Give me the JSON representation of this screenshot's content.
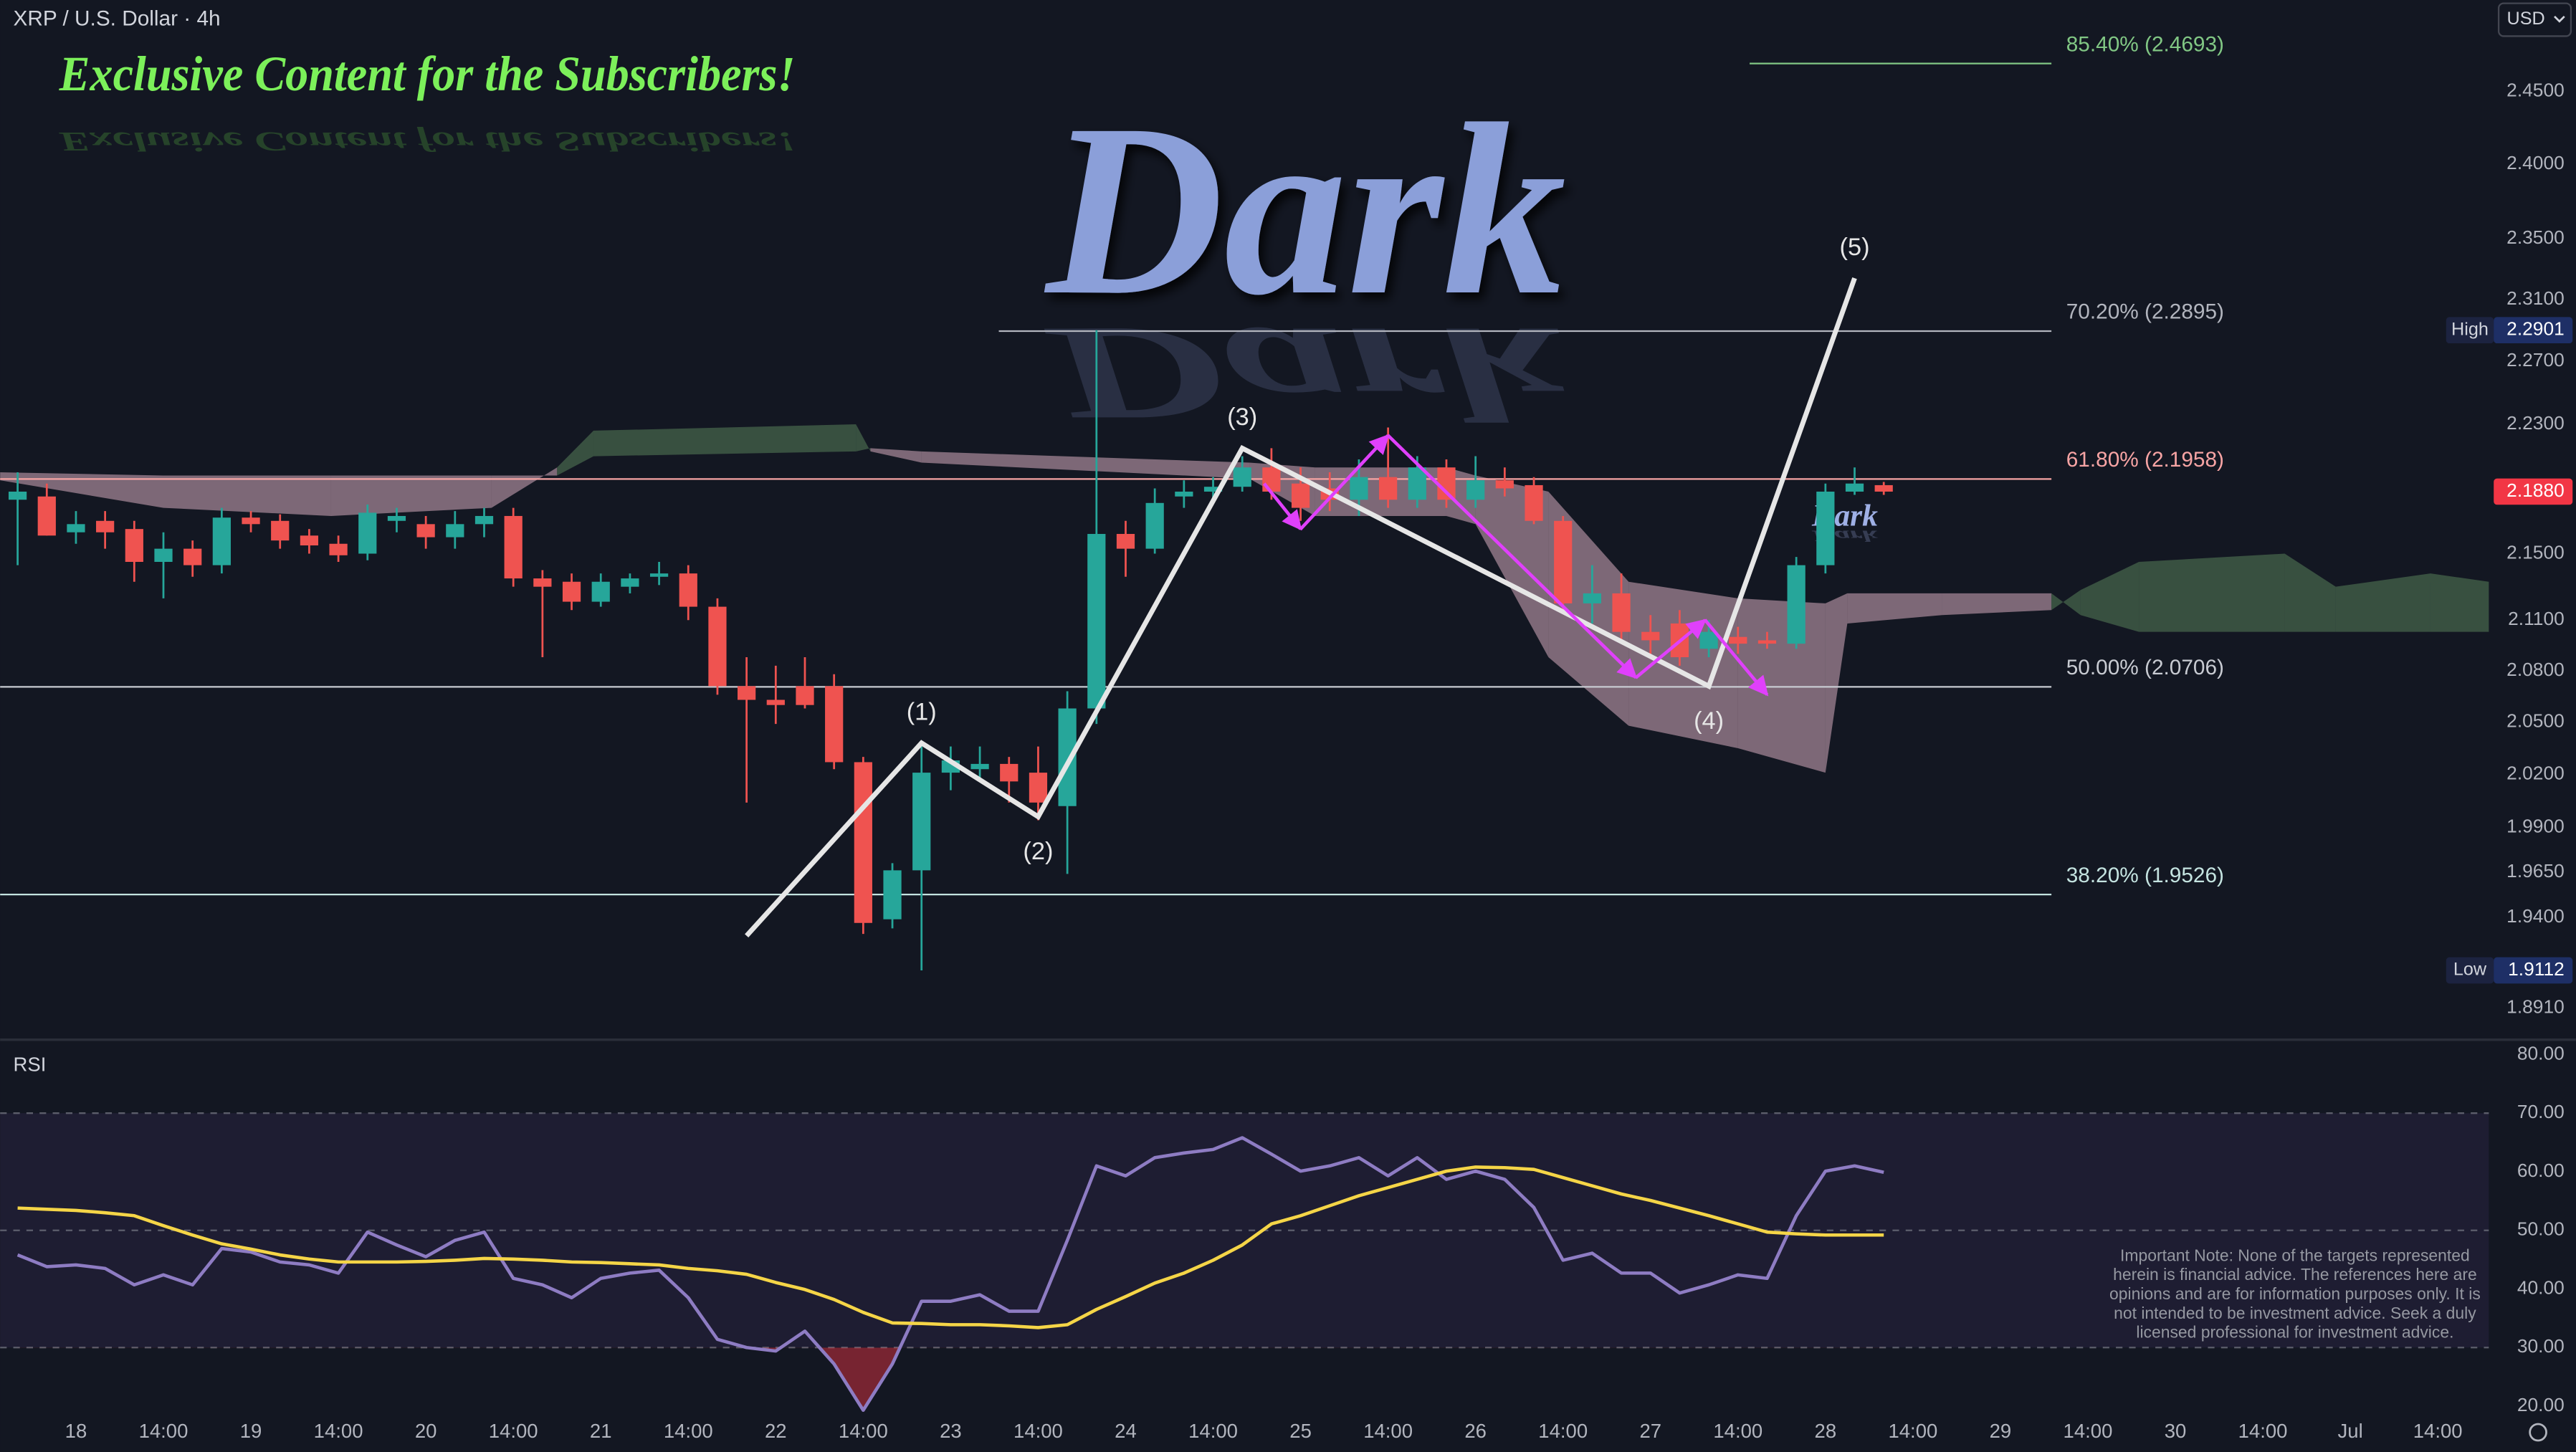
{
  "header": {
    "symbol": "XRP / U.S. Dollar · 4h",
    "currency": "USD"
  },
  "watermarks": {
    "banner": "Exclusive Content for the Subscribers!",
    "brand": "Dark",
    "brand_small": "Dark"
  },
  "note": {
    "lines": [
      "Important Note: None of the targets represented",
      "herein is financial advice. The references here are",
      "opinions and are for information purposes only. It is",
      "not intended to be investment advice. Seek a duly",
      "licensed professional for investment advice."
    ]
  },
  "chart_data": [
    {
      "type": "candlestick",
      "log": true,
      "xlim": [
        -8.4,
        333
      ],
      "xticks": [
        {
          "value": 2,
          "label": "18"
        },
        {
          "value": 14,
          "label": "14:00"
        },
        {
          "value": 26,
          "label": "19"
        },
        {
          "value": 38,
          "label": "14:00"
        },
        {
          "value": 50,
          "label": "20"
        },
        {
          "value": 62,
          "label": "14:00"
        },
        {
          "value": 74,
          "label": "21"
        },
        {
          "value": 86,
          "label": "14:00"
        },
        {
          "value": 98,
          "label": "22"
        },
        {
          "value": 110,
          "label": "14:00"
        },
        {
          "value": 122,
          "label": "23"
        },
        {
          "value": 134,
          "label": "14:00"
        },
        {
          "value": 146,
          "label": "24"
        },
        {
          "value": 158,
          "label": "14:00"
        },
        {
          "value": 170,
          "label": "25"
        },
        {
          "value": 182,
          "label": "14:00"
        },
        {
          "value": 194,
          "label": "26"
        },
        {
          "value": 206,
          "label": "14:00"
        },
        {
          "value": 218,
          "label": "27"
        },
        {
          "value": 230,
          "label": "14:00"
        },
        {
          "value": 242,
          "label": "28"
        },
        {
          "value": 254,
          "label": "14:00"
        },
        {
          "value": 266,
          "label": "29"
        },
        {
          "value": 278,
          "label": "14:00"
        },
        {
          "value": 290,
          "label": "30"
        },
        {
          "value": 302,
          "label": "14:00"
        },
        {
          "value": 314,
          "label": "Jul"
        },
        {
          "value": 326,
          "label": "14:00"
        }
      ],
      "ylim": [
        1.875,
        2.514
      ],
      "yticks": [
        {
          "value": 2.45,
          "label": "2.4500"
        },
        {
          "value": 2.4,
          "label": "2.4000"
        },
        {
          "value": 2.35,
          "label": "2.3500"
        },
        {
          "value": 2.31,
          "label": "2.3100"
        },
        {
          "value": 2.27,
          "label": "2.2700"
        },
        {
          "value": 2.23,
          "label": "2.2300"
        },
        {
          "value": 2.15,
          "label": "2.1500"
        },
        {
          "value": 2.11,
          "label": "2.1100"
        },
        {
          "value": 2.08,
          "label": "2.0800"
        },
        {
          "value": 2.05,
          "label": "2.0500"
        },
        {
          "value": 2.02,
          "label": "2.0200"
        },
        {
          "value": 1.99,
          "label": "1.9900"
        },
        {
          "value": 1.965,
          "label": "1.9650"
        },
        {
          "value": 1.94,
          "label": "1.9400"
        },
        {
          "value": 1.891,
          "label": "1.8910"
        }
      ],
      "up_color": "#26a69a",
      "down_color": "#ef5350",
      "x": [
        -6,
        -2,
        2,
        6,
        10,
        14,
        18,
        22,
        26,
        30,
        34,
        38,
        42,
        46,
        50,
        54,
        58,
        62,
        66,
        70,
        74,
        78,
        82,
        86,
        90,
        94,
        98,
        102,
        106,
        110,
        114,
        118,
        122,
        126,
        130,
        134,
        138,
        142,
        146,
        150,
        154,
        158,
        162,
        166,
        170,
        174,
        178,
        182,
        186,
        190,
        194,
        198,
        202,
        206,
        210,
        214,
        218,
        222,
        226,
        230,
        234,
        238,
        242,
        246,
        250
      ],
      "open": [
        2.183,
        2.185,
        2.163,
        2.17,
        2.165,
        2.145,
        2.153,
        2.143,
        2.172,
        2.17,
        2.161,
        2.156,
        2.15,
        2.17,
        2.168,
        2.16,
        2.168,
        2.173,
        2.135,
        2.133,
        2.121,
        2.13,
        2.136,
        2.138,
        2.118,
        2.071,
        2.063,
        2.071,
        2.071,
        2.027,
        1.939,
        1.966,
        2.021,
        2.023,
        2.026,
        2.021,
        2.002,
        2.058,
        2.162,
        2.153,
        2.185,
        2.188,
        2.191,
        2.203,
        2.193,
        2.19,
        2.183,
        2.197,
        2.183,
        2.203,
        2.183,
        2.195,
        2.192,
        2.17,
        2.12,
        2.126,
        2.103,
        2.108,
        2.093,
        2.1,
        2.098,
        2.096,
        2.143,
        2.188,
        2.192
      ],
      "high": [
        2.2,
        2.193,
        2.176,
        2.176,
        2.17,
        2.163,
        2.158,
        2.178,
        2.176,
        2.174,
        2.165,
        2.161,
        2.18,
        2.178,
        2.173,
        2.176,
        2.178,
        2.178,
        2.14,
        2.138,
        2.138,
        2.138,
        2.145,
        2.143,
        2.123,
        2.088,
        2.083,
        2.088,
        2.078,
        2.03,
        1.97,
        2.036,
        2.036,
        2.036,
        2.03,
        2.036,
        2.068,
        2.2901,
        2.17,
        2.19,
        2.195,
        2.197,
        2.21,
        2.215,
        2.203,
        2.2,
        2.208,
        2.228,
        2.21,
        2.208,
        2.21,
        2.203,
        2.197,
        2.173,
        2.143,
        2.138,
        2.113,
        2.116,
        2.11,
        2.106,
        2.103,
        2.148,
        2.193,
        2.203,
        2.194
      ],
      "low": [
        2.143,
        2.161,
        2.156,
        2.153,
        2.133,
        2.123,
        2.136,
        2.138,
        2.163,
        2.153,
        2.15,
        2.145,
        2.146,
        2.163,
        2.153,
        2.153,
        2.16,
        2.13,
        2.088,
        2.116,
        2.118,
        2.126,
        2.131,
        2.11,
        2.066,
        2.004,
        2.049,
        2.058,
        2.023,
        1.931,
        1.934,
        1.9112,
        2.011,
        2.016,
        2.004,
        1.994,
        1.964,
        2.049,
        2.136,
        2.15,
        2.178,
        2.183,
        2.188,
        2.183,
        2.17,
        2.176,
        2.173,
        2.178,
        2.178,
        2.178,
        2.178,
        2.185,
        2.168,
        2.116,
        2.108,
        2.098,
        2.09,
        2.083,
        2.088,
        2.09,
        2.093,
        2.093,
        2.138,
        2.186,
        2.186
      ],
      "close": [
        2.188,
        2.161,
        2.168,
        2.163,
        2.145,
        2.153,
        2.143,
        2.172,
        2.168,
        2.158,
        2.155,
        2.149,
        2.175,
        2.173,
        2.16,
        2.168,
        2.173,
        2.135,
        2.13,
        2.121,
        2.133,
        2.135,
        2.138,
        2.118,
        2.071,
        2.063,
        2.06,
        2.06,
        2.027,
        1.937,
        1.966,
        2.021,
        2.028,
        2.026,
        2.016,
        2.004,
        2.058,
        2.162,
        2.153,
        2.181,
        2.188,
        2.191,
        2.203,
        2.188,
        2.178,
        2.183,
        2.197,
        2.183,
        2.203,
        2.183,
        2.195,
        2.19,
        2.17,
        2.12,
        2.126,
        2.103,
        2.098,
        2.088,
        2.103,
        2.096,
        2.096,
        2.143,
        2.188,
        2.193,
        2.188
      ],
      "cloud": {
        "x": [
          -8.4,
          14,
          37,
          59,
          68,
          73,
          109,
          111,
          118,
          163,
          172,
          190,
          194,
          204,
          215,
          230,
          242,
          245,
          258,
          273,
          277,
          285,
          305,
          312,
          325,
          333
        ],
        "span_a": [
          2.195,
          2.178,
          2.173,
          2.178,
          2.203,
          2.226,
          2.23,
          2.213,
          2.206,
          2.196,
          2.173,
          2.173,
          2.168,
          2.088,
          2.048,
          2.035,
          2.021,
          2.108,
          2.113,
          2.116,
          2.128,
          2.145,
          2.15,
          2.13,
          2.138,
          2.133
        ],
        "span_b": [
          2.2,
          2.198,
          2.198,
          2.198,
          2.198,
          2.21,
          2.213,
          2.215,
          2.213,
          2.206,
          2.203,
          2.203,
          2.198,
          2.188,
          2.133,
          2.123,
          2.12,
          2.126,
          2.126,
          2.126,
          2.113,
          2.103,
          2.103,
          2.103,
          2.103,
          2.103
        ],
        "bull_color": "rgba(88,128,90,0.55)",
        "bear_color": "rgba(232,186,204,0.5)"
      },
      "levels": [
        {
          "label": "85.40% (2.4693)",
          "value": 2.4693,
          "x_range": [
            231.6,
            273
          ],
          "color": "#81c784"
        },
        {
          "label": "70.20% (2.2895)",
          "value": 2.2895,
          "x_range": [
            128.6,
            273
          ],
          "color": "#b2b5be"
        },
        {
          "label": "61.80% (2.1958)",
          "value": 2.1958,
          "x_range": [
            -8.4,
            273
          ],
          "color": "#f7a4a4"
        },
        {
          "label": "50.00% (2.0706)",
          "value": 2.0706,
          "x_range": [
            -8.4,
            273
          ],
          "color": "#c8cbd2"
        },
        {
          "label": "38.20% (1.9526)",
          "value": 1.9526,
          "x_range": [
            -8.4,
            273
          ],
          "color": "#c4e3e0"
        }
      ],
      "waves": {
        "x": [
          94,
          118,
          134,
          162,
          226,
          246
        ],
        "y": [
          1.93,
          2.038,
          1.996,
          2.215,
          2.071,
          2.324
        ],
        "labels": [
          null,
          "(1)",
          "(2)",
          "(3)",
          "(4)",
          "(5)"
        ],
        "color": "#e6e6e6"
      },
      "projection": {
        "x": [
          165,
          170,
          182,
          216,
          225.5,
          234
        ],
        "y": [
          2.193,
          2.165,
          2.223,
          2.076,
          2.11,
          2.066
        ],
        "color": "#e040fb"
      },
      "badges": [
        {
          "name": "High",
          "value": 2.2901
        },
        {
          "name": "Low",
          "value": 1.9112
        }
      ],
      "last": {
        "value": 2.188,
        "label": "2.1880",
        "color": "#f23645"
      }
    },
    {
      "type": "line",
      "title": "RSI",
      "ylim": [
        18.9,
        82.25
      ],
      "yticks": [
        {
          "value": 80,
          "label": "80.00"
        },
        {
          "value": 70,
          "label": "70.00"
        },
        {
          "value": 60,
          "label": "60.00"
        },
        {
          "value": 50,
          "label": "50.00"
        },
        {
          "value": 40,
          "label": "40.00"
        },
        {
          "value": 30,
          "label": "30.00"
        },
        {
          "value": 20,
          "label": "20.00"
        }
      ],
      "dashed_levels": [
        70,
        50,
        30
      ],
      "series": [
        {
          "color": "#8e7cc3",
          "values": [
            45.8,
            43.8,
            44.1,
            43.5,
            40.7,
            42.4,
            40.7,
            46.9,
            46.3,
            44.6,
            44.1,
            42.7,
            49.7,
            47.5,
            45.5,
            48.3,
            49.7,
            41.8,
            40.7,
            38.5,
            41.8,
            42.7,
            43.2,
            38.5,
            31.4,
            30.0,
            29.4,
            32.8,
            27.2,
            19.3,
            27.2,
            37.9,
            37.9,
            39.0,
            36.2,
            36.2,
            48.3,
            61.0,
            59.3,
            62.4,
            63.2,
            63.8,
            65.8,
            63.0,
            60.1,
            61.0,
            62.4,
            59.3,
            62.4,
            58.7,
            60.1,
            58.7,
            53.9,
            44.9,
            46.1,
            42.7,
            42.7,
            39.3,
            40.7,
            42.4,
            41.8,
            52.5,
            60.1,
            61.0,
            59.9
          ]
        },
        {
          "color": "#f5d547",
          "values": [
            53.8,
            53.6,
            53.4,
            53.0,
            52.5,
            50.8,
            49.2,
            47.7,
            46.8,
            45.8,
            45.1,
            44.6,
            44.6,
            44.6,
            44.7,
            44.9,
            45.2,
            45.1,
            44.9,
            44.6,
            44.5,
            44.3,
            44.1,
            43.5,
            43.1,
            42.5,
            41.1,
            39.9,
            38.2,
            36.0,
            34.2,
            34.1,
            33.9,
            33.9,
            33.7,
            33.4,
            33.9,
            36.5,
            38.7,
            41.0,
            42.7,
            44.9,
            47.5,
            51.1,
            52.5,
            54.2,
            55.9,
            57.3,
            58.7,
            60.1,
            60.8,
            60.7,
            60.4,
            59.0,
            57.6,
            56.2,
            55.1,
            53.8,
            52.5,
            51.1,
            49.7,
            49.4,
            49.2,
            49.2,
            49.2
          ]
        }
      ]
    }
  ]
}
